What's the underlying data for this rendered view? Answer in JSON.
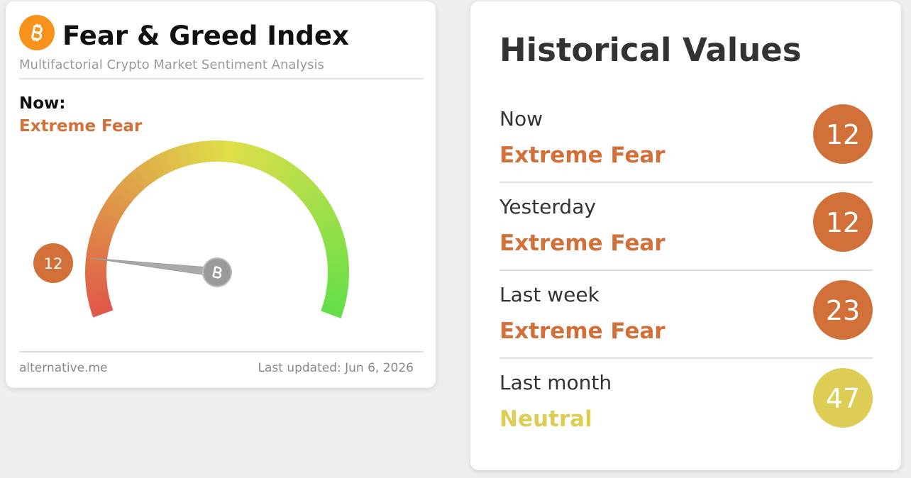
{
  "widget": {
    "title": "Fear & Greed Index",
    "subtitle": "Multifactorial Crypto Market Sentiment Analysis",
    "now_label": "Now:",
    "classification": "Extreme Fear",
    "classification_color": "#d2703a",
    "value": 12,
    "range": [
      0,
      100
    ],
    "source": "alternative.me",
    "updated": "Last updated: Jun 6, 2026"
  },
  "history": {
    "title": "Historical Values",
    "rows": [
      {
        "label": "Now",
        "classification": "Extreme Fear",
        "value": 12,
        "color": "#d2703a"
      },
      {
        "label": "Yesterday",
        "classification": "Extreme Fear",
        "value": 12,
        "color": "#d2703a"
      },
      {
        "label": "Last week",
        "classification": "Extreme Fear",
        "value": 23,
        "color": "#d2703a"
      },
      {
        "label": "Last month",
        "classification": "Neutral",
        "value": 47,
        "color": "#ddcd55"
      }
    ]
  }
}
